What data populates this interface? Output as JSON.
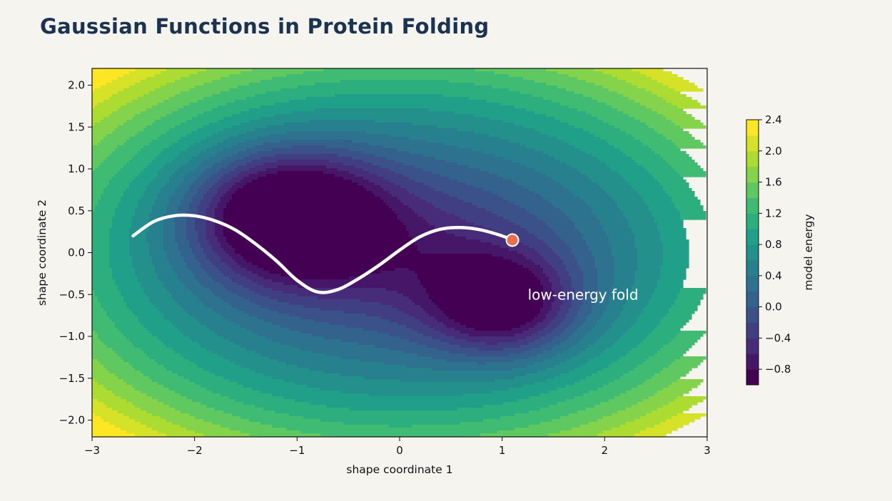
{
  "title": "Gaussian Functions in Protein Folding",
  "chart_data": {
    "type": "contour",
    "xlabel": "shape coordinate 1",
    "ylabel": "shape coordinate 2",
    "xlim": [
      -3,
      3
    ],
    "ylim": [
      -2.2,
      2.2
    ],
    "x_ticks": [
      -3,
      -2,
      -1,
      0,
      1,
      2,
      3
    ],
    "x_tick_labels": [
      "−3",
      "−2",
      "−1",
      "0",
      "1",
      "2",
      "3"
    ],
    "y_ticks": [
      2.0,
      1.5,
      1.0,
      0.5,
      0.0,
      -0.5,
      -1.0,
      -1.5,
      -2.0
    ],
    "y_tick_labels": [
      "2.0",
      "1.5",
      "1.0",
      "0.5",
      "0.0",
      "−0.5",
      "−1.0",
      "−1.5",
      "−2.0"
    ],
    "colormap": "viridis",
    "colorbar": {
      "label": "model energy",
      "levels": [
        -1.0,
        -0.8,
        -0.6,
        -0.4,
        -0.2,
        0.0,
        0.2,
        0.4,
        0.6,
        0.8,
        1.0,
        1.2,
        1.4,
        1.6,
        1.8,
        2.0,
        2.2,
        2.4
      ],
      "tick_values": [
        2.4,
        2.0,
        1.6,
        1.2,
        0.8,
        0.4,
        0.0,
        -0.4,
        -0.8
      ],
      "tick_labels": [
        "2.4",
        "2.0",
        "1.6",
        "1.2",
        "0.8",
        "0.4",
        "0.0",
        "−0.4",
        "−0.8"
      ]
    },
    "energy_model": {
      "quadratic": {
        "ax": 0.13,
        "ay": 0.28
      },
      "wells": [
        {
          "x": -1.1,
          "y": 0.45,
          "depth": 1.85,
          "sx": 0.62,
          "sy": 0.52
        },
        {
          "x": 1.0,
          "y": -0.63,
          "depth": 1.35,
          "sx": 0.5,
          "sy": 0.42
        }
      ],
      "ridge": {
        "x": 0.05,
        "y": 0.0,
        "depth": 0.55,
        "sx": 1.15,
        "sy": 0.65
      }
    },
    "path": {
      "x": [
        -2.6,
        -2.4,
        -2.2,
        -2.0,
        -1.8,
        -1.6,
        -1.4,
        -1.2,
        -1.0,
        -0.8,
        -0.6,
        -0.4,
        -0.2,
        0.0,
        0.2,
        0.4,
        0.6,
        0.8,
        1.0,
        1.1
      ],
      "y": [
        0.2,
        0.37,
        0.44,
        0.44,
        0.38,
        0.27,
        0.1,
        -0.1,
        -0.33,
        -0.47,
        -0.44,
        -0.31,
        -0.15,
        0.03,
        0.19,
        0.28,
        0.3,
        0.27,
        0.2,
        0.15
      ],
      "color": "#ffffff"
    },
    "end_marker": {
      "x": 1.1,
      "y": 0.15,
      "color": "#e8704f"
    },
    "annotation": {
      "text": "low-energy fold",
      "x": 1.25,
      "y": -0.5
    }
  }
}
